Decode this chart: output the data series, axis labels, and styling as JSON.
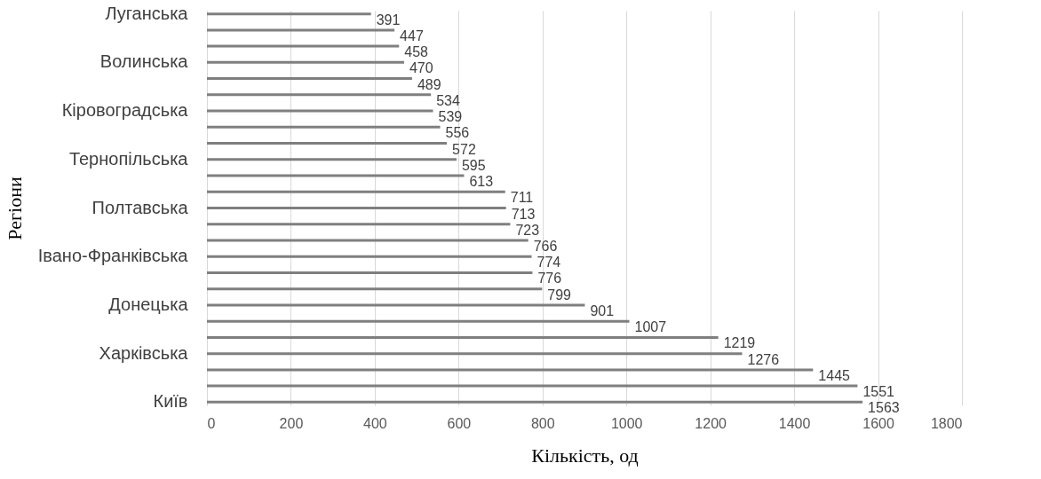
{
  "chart_data": {
    "type": "bar",
    "orientation": "horizontal",
    "xlabel": "Кількість, од",
    "ylabel": "Регіони",
    "categories": [
      "Луганська",
      null,
      null,
      "Волинська",
      null,
      null,
      "Кіровоградська",
      null,
      null,
      "Тернопільська",
      null,
      null,
      "Полтавська",
      null,
      null,
      "Івано-Франківська",
      null,
      null,
      "Донецька",
      null,
      null,
      "Харківська",
      null,
      null,
      "Київ"
    ],
    "values": [
      391,
      447,
      458,
      470,
      489,
      534,
      539,
      556,
      572,
      595,
      613,
      711,
      713,
      723,
      766,
      774,
      776,
      799,
      901,
      1007,
      1219,
      1276,
      1445,
      1551,
      1563
    ],
    "color": "#7f7f7f",
    "xlim": [
      0,
      1800
    ],
    "xticks": [
      0,
      200,
      400,
      600,
      800,
      1000,
      1200,
      1400,
      1600,
      1800
    ],
    "grid": "x",
    "data_labels": true
  }
}
